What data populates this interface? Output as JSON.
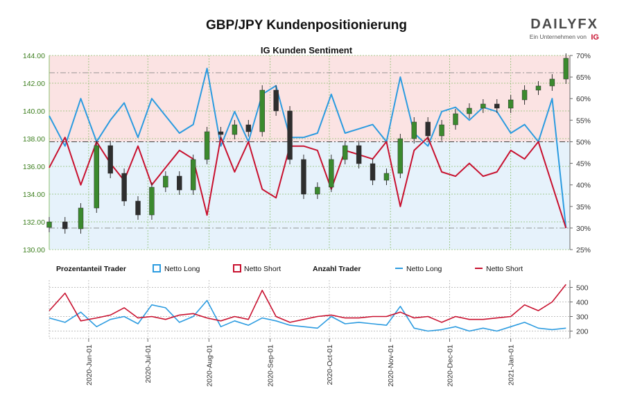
{
  "header": {
    "title": "GBP/JPY Kundenpositionierung",
    "brand": "DAILYFX",
    "brand_sub": "Ein Unternehmen von",
    "brand_ig": "IG"
  },
  "colors": {
    "long": "#2b9be0",
    "short": "#c8102e",
    "candle": "#2e2e2e",
    "axis_left": "#3a7d1c",
    "long_zone": "#e6f2fb",
    "short_zone": "#fbe3e3"
  },
  "chart_data": [
    {
      "type": "line",
      "title": "IG Kunden Sentiment",
      "y_left": {
        "ticks": [
          "130.00",
          "132.00",
          "134.00",
          "136.00",
          "138.00",
          "140.00",
          "142.00",
          "144.00"
        ],
        "ylim": [
          130,
          144
        ]
      },
      "y_right": {
        "ticks": [
          "25%",
          "30%",
          "35%",
          "40%",
          "45%",
          "50%",
          "55%",
          "60%",
          "65%",
          "70%"
        ],
        "ylim": [
          25,
          70
        ]
      },
      "x_ticks": [
        "2020-Jun-01",
        "2020-Jul-01",
        "2020-Aug-01",
        "2020-Sep-01",
        "2020-Oct-01",
        "2020-Nov-01",
        "2020-Dec-01",
        "2021-Jan-01"
      ],
      "x_range": [
        "2020-May-12",
        "2021-Jan-31"
      ],
      "reference_levels_pct": [
        30,
        50,
        66
      ],
      "grid": true,
      "legend": {
        "group1": "Prozentanteil Trader",
        "group2": "Anzahl Trader",
        "long": "Netto Long",
        "short": "Netto Short"
      },
      "series": [
        {
          "name": "GBP/JPY",
          "kind": "candlestick",
          "dates": [
            "2020-05-12",
            "2020-05-20",
            "2020-05-28",
            "2020-06-05",
            "2020-06-12",
            "2020-06-19",
            "2020-06-26",
            "2020-07-03",
            "2020-07-10",
            "2020-07-17",
            "2020-07-24",
            "2020-07-31",
            "2020-08-07",
            "2020-08-14",
            "2020-08-21",
            "2020-08-28",
            "2020-09-04",
            "2020-09-11",
            "2020-09-18",
            "2020-09-25",
            "2020-10-02",
            "2020-10-09",
            "2020-10-16",
            "2020-10-23",
            "2020-10-30",
            "2020-11-06",
            "2020-11-13",
            "2020-11-20",
            "2020-11-27",
            "2020-12-04",
            "2020-12-11",
            "2020-12-18",
            "2020-12-25",
            "2021-01-01",
            "2021-01-08",
            "2021-01-15",
            "2021-01-22",
            "2021-01-29"
          ],
          "close": [
            132.0,
            131.5,
            133.0,
            137.5,
            135.5,
            133.5,
            132.5,
            134.5,
            135.3,
            134.3,
            136.5,
            138.5,
            138.3,
            139.0,
            138.5,
            141.5,
            140.0,
            136.5,
            134.0,
            134.5,
            136.5,
            137.5,
            136.2,
            135.0,
            135.5,
            138.0,
            139.2,
            138.2,
            139.0,
            139.8,
            140.2,
            140.5,
            140.2,
            140.8,
            141.5,
            141.8,
            142.3,
            143.8
          ]
        },
        {
          "name": "Netto Long",
          "unit": "%",
          "dates": [
            "2020-05-12",
            "2020-05-20",
            "2020-05-28",
            "2020-06-05",
            "2020-06-12",
            "2020-06-19",
            "2020-06-26",
            "2020-07-03",
            "2020-07-10",
            "2020-07-17",
            "2020-07-24",
            "2020-07-31",
            "2020-08-07",
            "2020-08-14",
            "2020-08-21",
            "2020-08-28",
            "2020-09-04",
            "2020-09-11",
            "2020-09-18",
            "2020-09-25",
            "2020-10-02",
            "2020-10-09",
            "2020-10-16",
            "2020-10-23",
            "2020-10-30",
            "2020-11-06",
            "2020-11-13",
            "2020-11-20",
            "2020-11-27",
            "2020-12-04",
            "2020-12-11",
            "2020-12-18",
            "2020-12-25",
            "2021-01-01",
            "2021-01-08",
            "2021-01-15",
            "2021-01-22",
            "2021-01-29"
          ],
          "values": [
            56,
            49,
            60,
            50,
            55,
            59,
            51,
            60,
            56,
            52,
            54,
            67,
            49,
            57,
            50,
            61,
            63,
            51,
            51,
            52,
            61,
            52,
            53,
            54,
            50,
            65,
            52,
            49,
            57,
            58,
            55,
            58,
            57,
            52,
            54,
            50,
            60,
            30
          ]
        },
        {
          "name": "Netto Short",
          "unit": "%",
          "dates": [
            "2020-05-12",
            "2020-05-20",
            "2020-05-28",
            "2020-06-05",
            "2020-06-12",
            "2020-06-19",
            "2020-06-26",
            "2020-07-03",
            "2020-07-10",
            "2020-07-17",
            "2020-07-24",
            "2020-07-31",
            "2020-08-07",
            "2020-08-14",
            "2020-08-21",
            "2020-08-28",
            "2020-09-04",
            "2020-09-11",
            "2020-09-18",
            "2020-09-25",
            "2020-10-02",
            "2020-10-09",
            "2020-10-16",
            "2020-10-23",
            "2020-10-30",
            "2020-11-06",
            "2020-11-13",
            "2020-11-20",
            "2020-11-27",
            "2020-12-04",
            "2020-12-11",
            "2020-12-18",
            "2020-12-25",
            "2021-01-01",
            "2021-01-08",
            "2021-01-15",
            "2021-01-22",
            "2021-01-29"
          ],
          "values": [
            44,
            51,
            40,
            50,
            45,
            41,
            49,
            40,
            44,
            48,
            46,
            33,
            51,
            43,
            50,
            39,
            37,
            49,
            49,
            48,
            39,
            48,
            47,
            46,
            50,
            35,
            48,
            51,
            43,
            42,
            45,
            42,
            43,
            48,
            46,
            50,
            40,
            30
          ]
        }
      ]
    },
    {
      "type": "line",
      "title": "",
      "y_right": {
        "ticks": [
          "200",
          "300",
          "400",
          "500"
        ],
        "ylim": [
          150,
          550
        ]
      },
      "x_ticks": [
        "2020-Jun-01",
        "2020-Jul-01",
        "2020-Aug-01",
        "2020-Sep-01",
        "2020-Oct-01",
        "2020-Nov-01",
        "2020-Dec-01",
        "2021-Jan-01"
      ],
      "grid": true,
      "series": [
        {
          "name": "Netto Long",
          "dates": [
            "2020-05-12",
            "2020-05-20",
            "2020-05-28",
            "2020-06-05",
            "2020-06-12",
            "2020-06-19",
            "2020-06-26",
            "2020-07-03",
            "2020-07-10",
            "2020-07-17",
            "2020-07-24",
            "2020-07-31",
            "2020-08-07",
            "2020-08-14",
            "2020-08-21",
            "2020-08-28",
            "2020-09-04",
            "2020-09-11",
            "2020-09-18",
            "2020-09-25",
            "2020-10-02",
            "2020-10-09",
            "2020-10-16",
            "2020-10-23",
            "2020-10-30",
            "2020-11-06",
            "2020-11-13",
            "2020-11-20",
            "2020-11-27",
            "2020-12-04",
            "2020-12-11",
            "2020-12-18",
            "2020-12-25",
            "2021-01-01",
            "2021-01-08",
            "2021-01-15",
            "2021-01-22",
            "2021-01-29"
          ],
          "values": [
            290,
            260,
            330,
            230,
            280,
            300,
            250,
            380,
            360,
            260,
            300,
            410,
            230,
            270,
            240,
            290,
            270,
            240,
            230,
            220,
            300,
            250,
            260,
            250,
            240,
            370,
            220,
            200,
            210,
            230,
            200,
            220,
            200,
            230,
            260,
            220,
            210,
            220
          ]
        },
        {
          "name": "Netto Short",
          "dates": [
            "2020-05-12",
            "2020-05-20",
            "2020-05-28",
            "2020-06-05",
            "2020-06-12",
            "2020-06-19",
            "2020-06-26",
            "2020-07-03",
            "2020-07-10",
            "2020-07-17",
            "2020-07-24",
            "2020-07-31",
            "2020-08-07",
            "2020-08-14",
            "2020-08-21",
            "2020-08-28",
            "2020-09-04",
            "2020-09-11",
            "2020-09-18",
            "2020-09-25",
            "2020-10-02",
            "2020-10-09",
            "2020-10-16",
            "2020-10-23",
            "2020-10-30",
            "2020-11-06",
            "2020-11-13",
            "2020-11-20",
            "2020-11-27",
            "2020-12-04",
            "2020-12-11",
            "2020-12-18",
            "2020-12-25",
            "2021-01-01",
            "2021-01-08",
            "2021-01-15",
            "2021-01-22",
            "2021-01-29"
          ],
          "values": [
            340,
            460,
            270,
            290,
            310,
            360,
            290,
            300,
            280,
            310,
            320,
            290,
            270,
            300,
            280,
            480,
            300,
            260,
            280,
            300,
            310,
            290,
            290,
            300,
            300,
            330,
            290,
            300,
            260,
            300,
            280,
            280,
            290,
            300,
            380,
            340,
            400,
            520
          ]
        }
      ]
    }
  ]
}
